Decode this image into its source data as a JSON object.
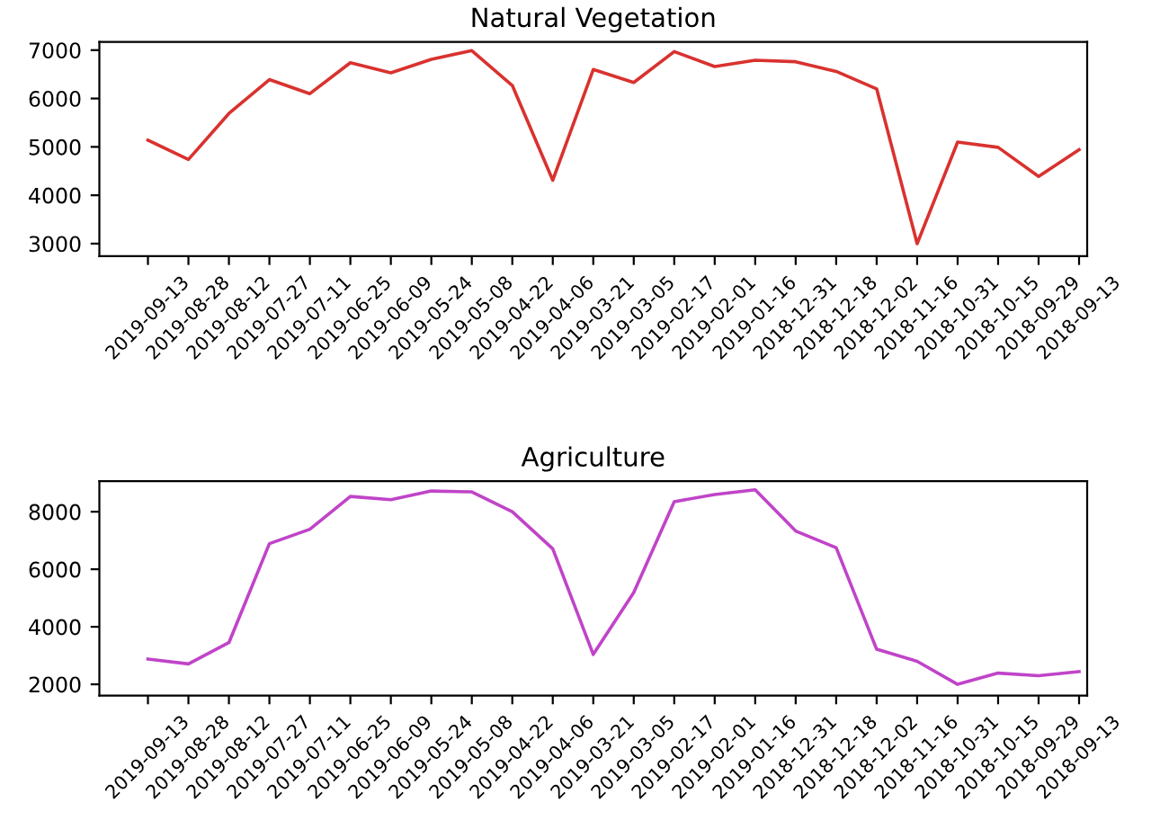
{
  "chart_data": [
    {
      "type": "line",
      "title": "Natural Vegetation",
      "categories": [
        "2019-09-13",
        "2019-08-28",
        "2019-08-12",
        "2019-07-27",
        "2019-07-11",
        "2019-06-25",
        "2019-06-09",
        "2019-05-24",
        "2019-05-08",
        "2019-04-22",
        "2019-04-06",
        "2019-03-21",
        "2019-03-05",
        "2019-02-17",
        "2019-02-01",
        "2019-01-16",
        "2018-12-31",
        "2018-12-18",
        "2018-12-02",
        "2018-11-16",
        "2018-10-31",
        "2018-10-15",
        "2018-09-29",
        "2018-09-13"
      ],
      "series": [
        {
          "color": "#d9322f",
          "values": [
            5140,
            4740,
            5690,
            6390,
            6100,
            6740,
            6530,
            6810,
            6990,
            6270,
            4310,
            6600,
            6330,
            6970,
            6660,
            6790,
            6760,
            6560,
            6200,
            3000,
            5100,
            4990,
            4390,
            4940
          ]
        }
      ],
      "ylim": [
        2740,
        7170
      ],
      "yticks": [
        3000,
        4000,
        5000,
        6000,
        7000
      ]
    },
    {
      "type": "line",
      "title": "Agriculture",
      "categories": [
        "2019-09-13",
        "2019-08-28",
        "2019-08-12",
        "2019-07-27",
        "2019-07-11",
        "2019-06-25",
        "2019-06-09",
        "2019-05-24",
        "2019-05-08",
        "2019-04-22",
        "2019-04-06",
        "2019-03-21",
        "2019-03-05",
        "2019-02-17",
        "2019-02-01",
        "2019-01-16",
        "2018-12-31",
        "2018-12-18",
        "2018-12-02",
        "2018-11-16",
        "2018-10-31",
        "2018-10-15",
        "2018-09-29",
        "2018-09-13"
      ],
      "series": [
        {
          "color": "#c044c8",
          "values": [
            2880,
            2710,
            3450,
            6890,
            7390,
            8530,
            8420,
            8720,
            8690,
            8000,
            6710,
            3040,
            5190,
            8350,
            8600,
            8760,
            7330,
            6750,
            3220,
            2800,
            2000,
            2390,
            2300,
            2440
          ]
        }
      ],
      "ylim": [
        1610,
        9060
      ],
      "yticks": [
        2000,
        4000,
        6000,
        8000
      ]
    }
  ]
}
